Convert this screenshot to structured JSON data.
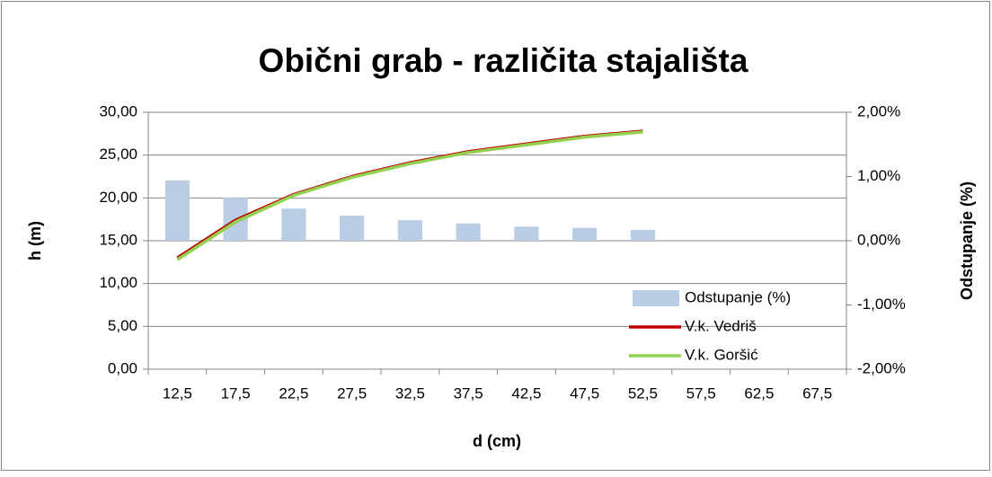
{
  "chart_data": {
    "type": "bar_line",
    "title": "Obični grab - različita stajališta",
    "xlabel": "d (cm)",
    "ylabel": "h (m)",
    "y2label": "Odstupanje (%)",
    "categories": [
      "12,5",
      "17,5",
      "22,5",
      "27,5",
      "32,5",
      "37,5",
      "42,5",
      "47,5",
      "52,5",
      "57,5",
      "62,5",
      "67,5"
    ],
    "ylim": [
      0,
      30
    ],
    "yticks": [
      {
        "value": 0,
        "label": "0,00"
      },
      {
        "value": 5,
        "label": "5,00"
      },
      {
        "value": 10,
        "label": "10,00"
      },
      {
        "value": 15,
        "label": "15,00"
      },
      {
        "value": 20,
        "label": "20,00"
      },
      {
        "value": 25,
        "label": "25,00"
      },
      {
        "value": 30,
        "label": "30,00"
      }
    ],
    "y2lim": [
      -2,
      2
    ],
    "y2ticks": [
      {
        "value": -2,
        "label": "-2,00%"
      },
      {
        "value": -1,
        "label": "-1,00%"
      },
      {
        "value": 0,
        "label": "0,00%"
      },
      {
        "value": 1,
        "label": "1,00%"
      },
      {
        "value": 2,
        "label": "2,00%"
      }
    ],
    "grid": true,
    "legend": "lower right",
    "series": [
      {
        "name": "Odstupanje (%)",
        "kind": "bar",
        "axis": "y2",
        "color": "#b9cde5",
        "values": [
          0.94,
          0.67,
          0.5,
          0.39,
          0.32,
          0.27,
          0.22,
          0.2,
          0.17,
          null,
          null,
          null
        ]
      },
      {
        "name": "V.k. Vedriš",
        "kind": "line",
        "color": "#c00000",
        "values": [
          13.0,
          17.4,
          20.4,
          22.5,
          24.1,
          25.4,
          26.3,
          27.2,
          27.8,
          null,
          null,
          null
        ]
      },
      {
        "name": "V.k. Goršić",
        "kind": "line",
        "color": "#92d050",
        "values": [
          12.8,
          17.2,
          20.3,
          22.4,
          24.0,
          25.3,
          26.2,
          27.1,
          27.7,
          null,
          null,
          null
        ]
      }
    ]
  }
}
